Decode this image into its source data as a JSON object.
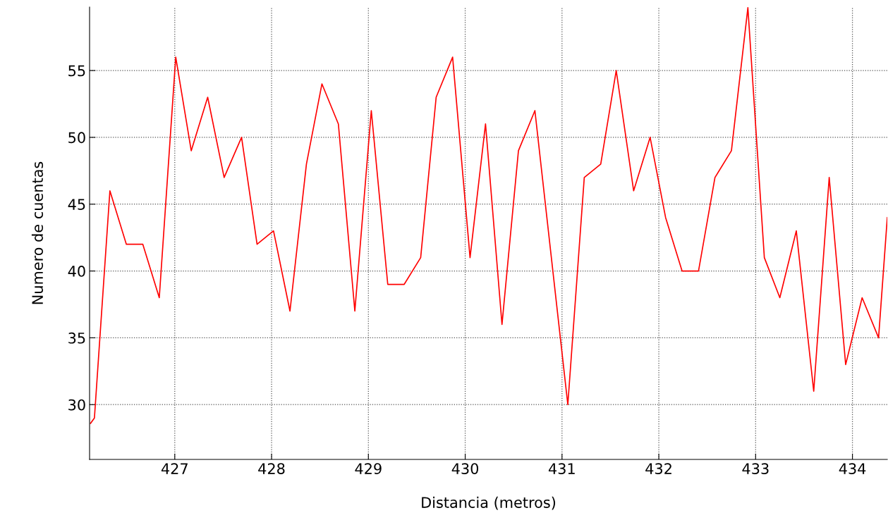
{
  "chart_data": {
    "type": "line",
    "xlabel": "Distancia (metros)",
    "ylabel": "Numero de cuentas",
    "series": [
      {
        "color": "#ff0000",
        "x": [
          426.13,
          426.17,
          426.33,
          426.5,
          426.67,
          426.84,
          427.01,
          427.17,
          427.34,
          427.51,
          427.69,
          427.85,
          428.02,
          428.19,
          428.36,
          428.52,
          428.69,
          428.86,
          429.03,
          429.2,
          429.37,
          429.54,
          429.7,
          429.87,
          430.05,
          430.21,
          430.38,
          430.55,
          430.72,
          431.06,
          431.23,
          431.4,
          431.56,
          431.74,
          431.91,
          432.07,
          432.24,
          432.41,
          432.58,
          432.75,
          432.92,
          433.09,
          433.25,
          433.42,
          433.6,
          433.76,
          433.93,
          434.1,
          434.27,
          434.36
        ],
        "values": [
          28.6,
          29,
          46,
          42,
          42,
          38,
          56,
          49,
          53,
          47,
          50,
          42,
          43,
          37,
          48,
          54,
          51,
          37,
          52,
          39,
          39,
          41,
          53,
          56,
          41,
          51,
          36,
          49,
          52,
          30,
          47,
          48,
          55,
          46,
          50,
          44,
          40,
          40,
          47,
          49,
          59.7,
          41,
          38,
          43,
          31,
          47,
          33,
          38,
          35,
          44
        ]
      }
    ],
    "xlim": [
      426.12,
      434.36
    ],
    "ylim": [
      25.9,
      59.75
    ],
    "xticks": [
      427,
      428,
      429,
      430,
      431,
      432,
      433,
      434
    ],
    "yticks": [
      30,
      35,
      40,
      45,
      50,
      55
    ],
    "grid": true,
    "line_style": "solid",
    "marker": "none"
  }
}
